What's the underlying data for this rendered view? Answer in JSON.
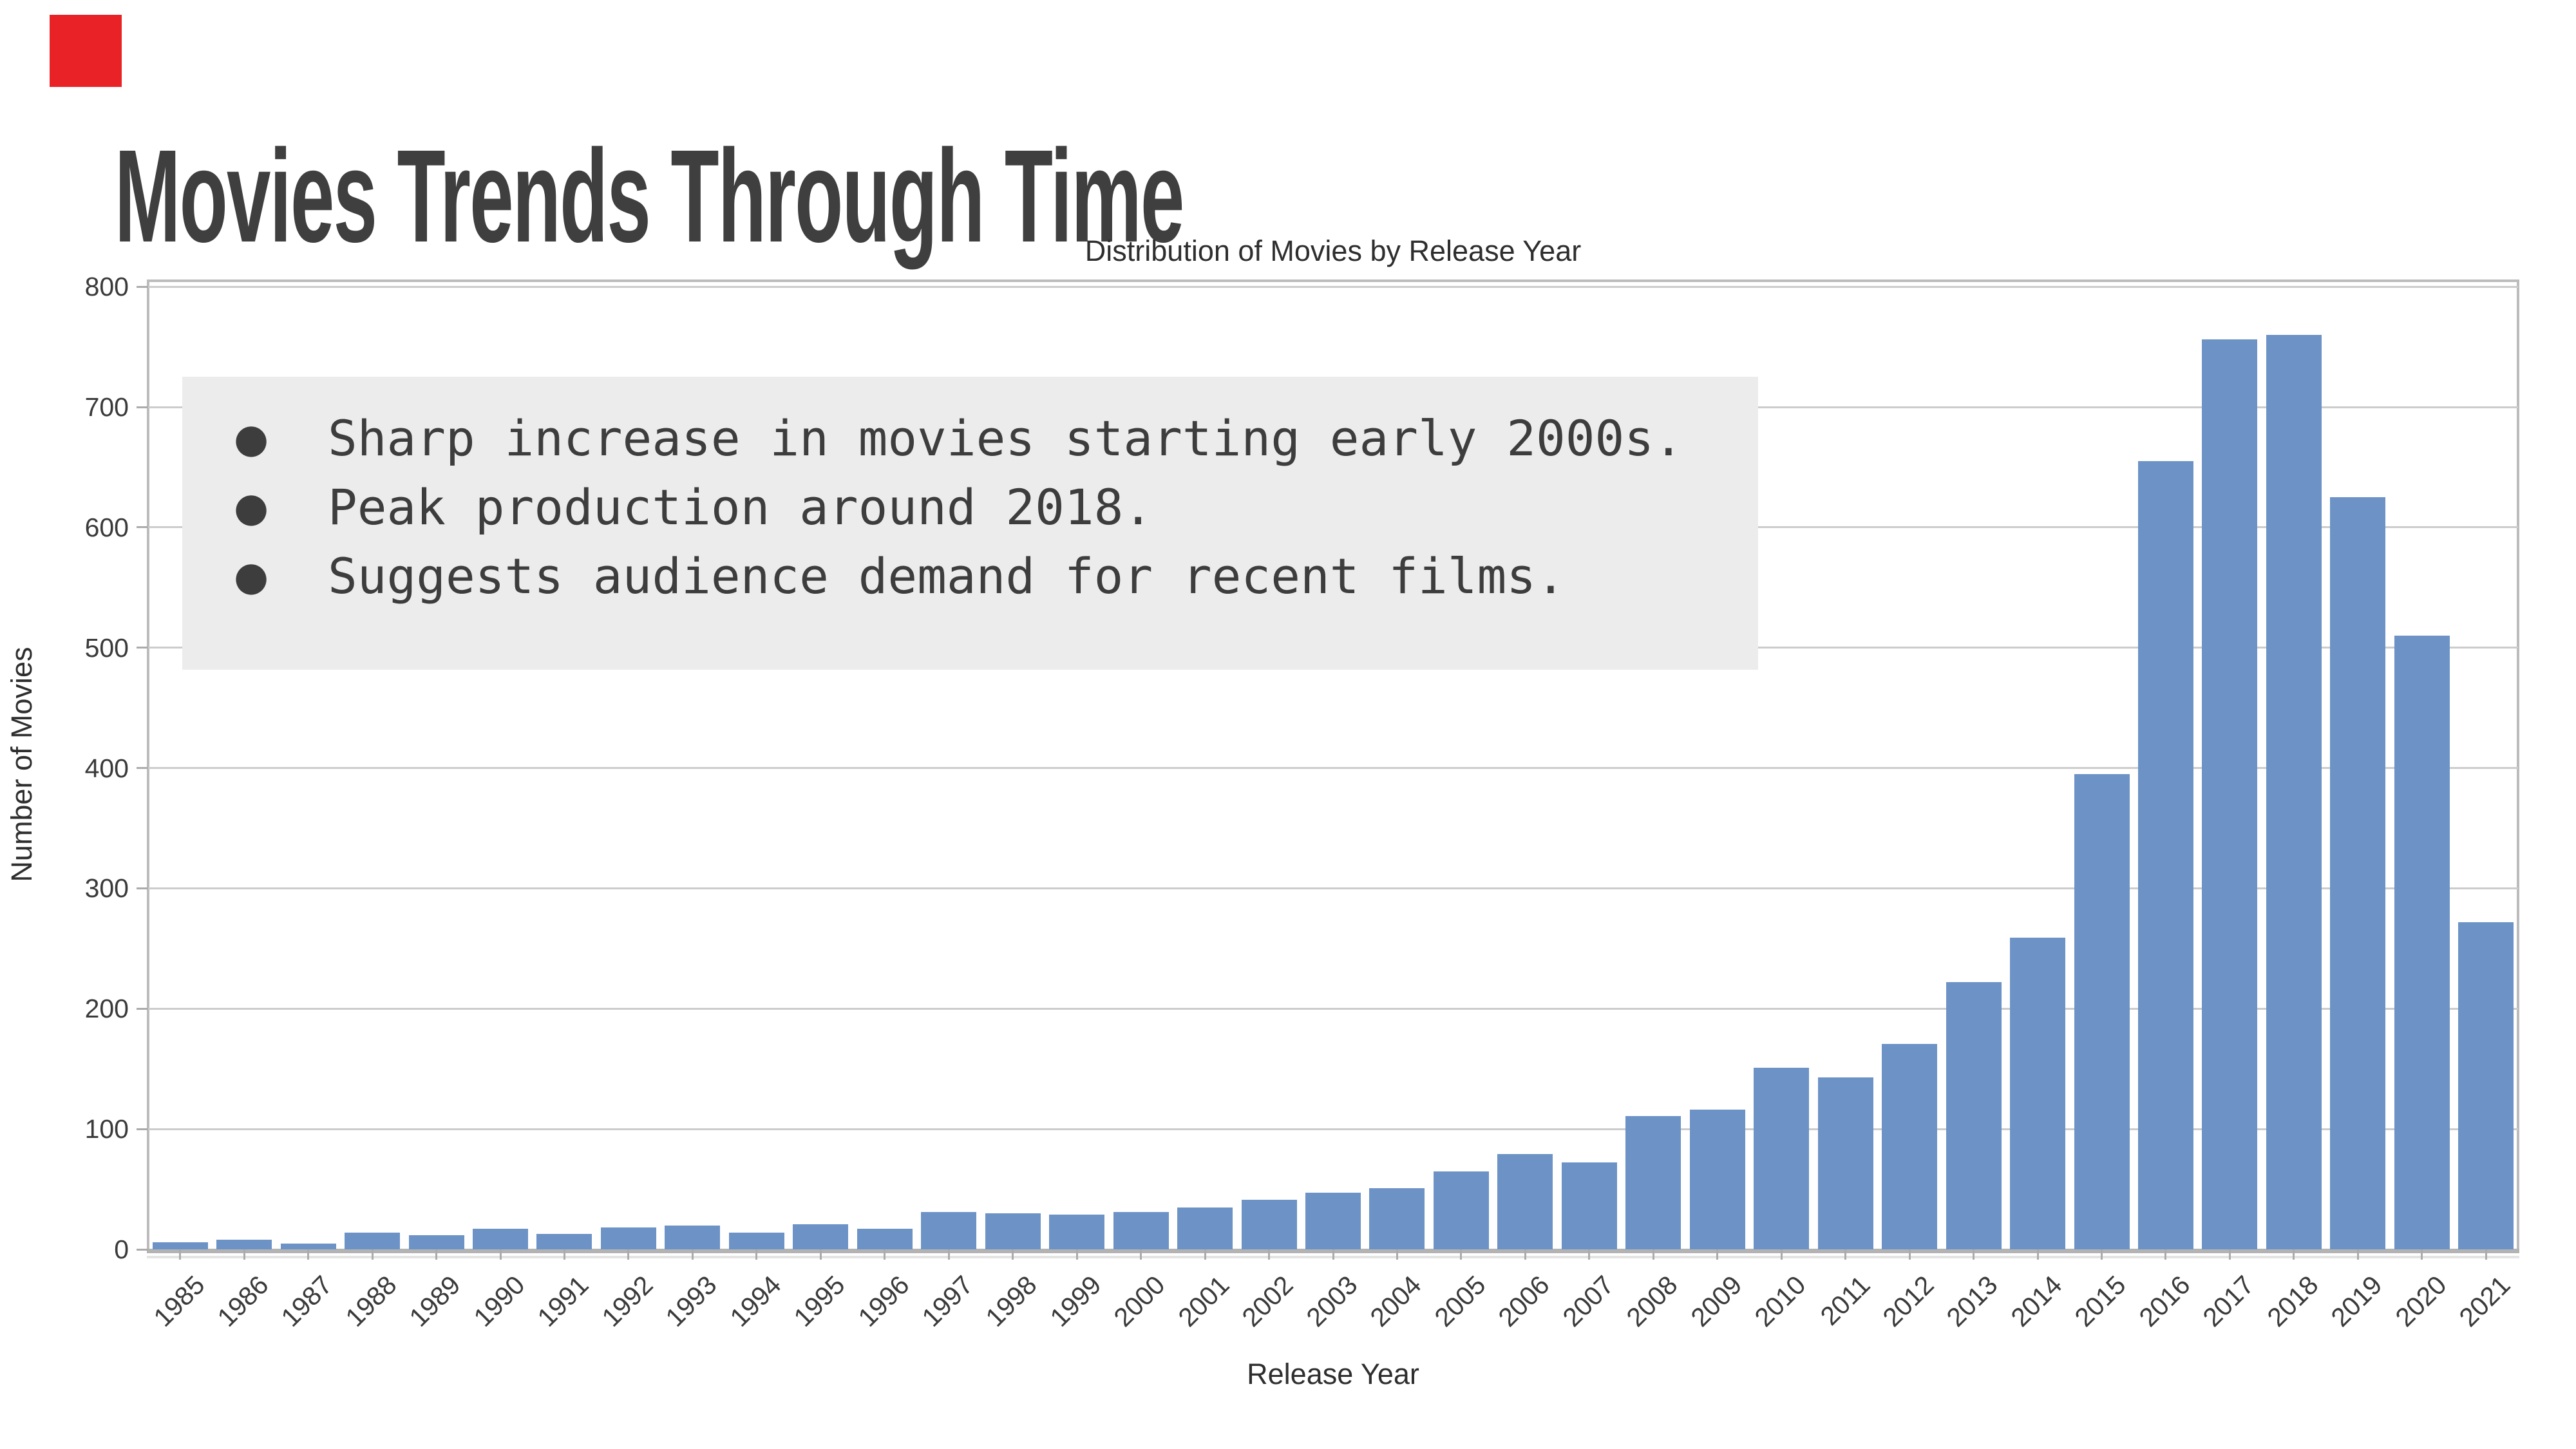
{
  "page": {
    "title": "Movies Trends Through Time"
  },
  "accent": {
    "red_square_color": "#e92228"
  },
  "annotation": {
    "bg_color": "#ececec",
    "bullets": [
      "Sharp increase in movies starting early 2000s.",
      "Peak production around 2018.",
      "Suggests audience demand for recent films."
    ]
  },
  "chart_data": {
    "type": "bar",
    "title": "Distribution of Movies by Release Year",
    "xlabel": "Release Year",
    "ylabel": "Number of Movies",
    "ylim": [
      0,
      806
    ],
    "yticks": [
      0,
      100,
      200,
      300,
      400,
      500,
      600,
      700,
      800
    ],
    "grid": "horizontal",
    "legend": "none",
    "bar_color": "#6d93c6",
    "grid_color": "#cccccc",
    "categories": [
      "1985",
      "1986",
      "1987",
      "1988",
      "1989",
      "1990",
      "1991",
      "1992",
      "1993",
      "1994",
      "1995",
      "1996",
      "1997",
      "1998",
      "1999",
      "2000",
      "2001",
      "2002",
      "2003",
      "2004",
      "2005",
      "2006",
      "2007",
      "2008",
      "2009",
      "2010",
      "2011",
      "2012",
      "2013",
      "2014",
      "2015",
      "2016",
      "2017",
      "2018",
      "2019",
      "2020",
      "2021"
    ],
    "values": [
      6,
      8,
      5,
      14,
      12,
      17,
      13,
      18,
      20,
      14,
      21,
      17,
      31,
      30,
      29,
      31,
      35,
      41,
      47,
      51,
      65,
      79,
      72,
      111,
      116,
      151,
      143,
      171,
      222,
      259,
      395,
      655,
      756,
      760,
      625,
      510,
      272
    ]
  }
}
